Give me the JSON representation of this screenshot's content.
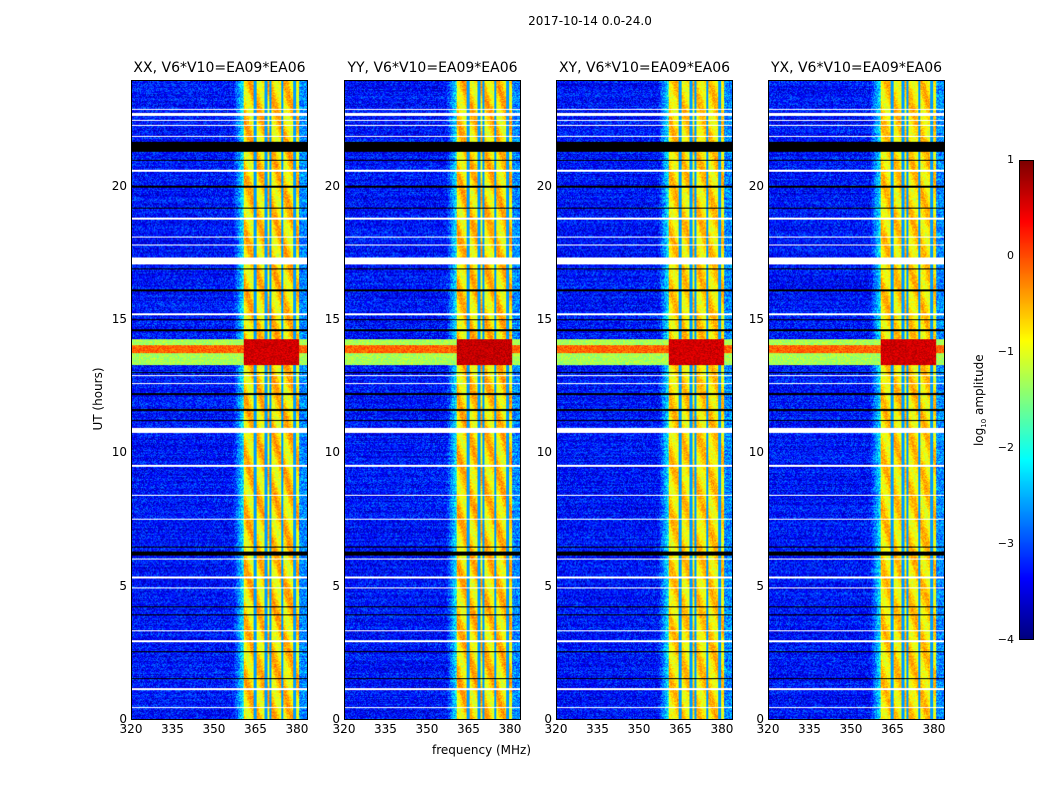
{
  "chart_data": {
    "type": "heatmap",
    "title": "2017-10-14 0.0-24.0",
    "xlabel": "frequency (MHz)",
    "ylabel": "UT (hours)",
    "xlim": [
      320,
      384
    ],
    "ylim": [
      0,
      24
    ],
    "xticks": [
      "320",
      "335",
      "350",
      "365",
      "380"
    ],
    "yticks": [
      "0",
      "5",
      "10",
      "15",
      "20"
    ],
    "panels": [
      {
        "title": "XX, V6*V10=EA09*EA06",
        "band_strength": 1.0,
        "event_strength": 1.0
      },
      {
        "title": "YY, V6*V10=EA09*EA06",
        "band_strength": 1.0,
        "event_strength": 1.1
      },
      {
        "title": "XY, V6*V10=EA09*EA06",
        "band_strength": 0.8,
        "event_strength": 1.0
      },
      {
        "title": "YX, V6*V10=EA09*EA06",
        "band_strength": 0.8,
        "event_strength": 1.0
      }
    ],
    "colorbar": {
      "label": "log10 amplitude",
      "label_main": "log",
      "label_sub": "10",
      "label_rest": " amplitude",
      "range": [
        -4,
        1
      ],
      "ticks": [
        "1",
        "0",
        "−1",
        "−2",
        "−3",
        "−4"
      ],
      "colormap": "jet"
    },
    "features": {
      "background_log_amp": -3.3,
      "rfi_band_mhz": [
        361,
        381
      ],
      "rfi_log_amp": -0.9,
      "band_gap_lines_mhz": [
        365,
        369,
        370.5,
        375,
        379.5
      ],
      "event_hours": [
        13.3,
        14.3
      ],
      "event_log_amp": 0.6,
      "flagged_white_hours": [
        [
          22.3,
          22.35
        ],
        [
          22.5,
          22.55
        ],
        [
          22.7,
          22.8
        ],
        [
          22.9,
          22.95
        ],
        [
          21.9,
          21.95
        ],
        [
          17.1,
          17.35
        ],
        [
          10.75,
          10.95
        ],
        [
          6.0,
          6.05
        ],
        [
          12.9,
          12.95
        ],
        [
          12.6,
          12.65
        ],
        [
          3.3,
          3.35
        ],
        [
          2.9,
          2.95
        ],
        [
          1.1,
          1.15
        ],
        [
          0.4,
          0.45
        ],
        [
          18.1,
          18.15
        ],
        [
          17.8,
          17.85
        ],
        [
          8.4,
          8.45
        ],
        [
          9.5,
          9.55
        ],
        [
          4.9,
          4.95
        ],
        [
          20.6,
          20.65
        ],
        [
          18.8,
          18.85
        ],
        [
          15.2,
          15.25
        ],
        [
          7.5,
          7.55
        ],
        [
          5.3,
          5.35
        ]
      ],
      "black_hours": [
        [
          21.35,
          21.7
        ],
        [
          6.15,
          6.3
        ],
        [
          11.2,
          11.25
        ],
        [
          11.6,
          11.65
        ],
        [
          13.0,
          13.05
        ],
        [
          12.2,
          12.25
        ],
        [
          15.0,
          15.05
        ],
        [
          14.6,
          14.65
        ],
        [
          16.1,
          16.15
        ],
        [
          16.9,
          16.95
        ],
        [
          19.2,
          19.25
        ],
        [
          20.0,
          20.05
        ],
        [
          21.0,
          21.05
        ],
        [
          4.2,
          4.25
        ],
        [
          2.5,
          2.55
        ],
        [
          1.5,
          1.55
        ],
        [
          3.9,
          3.95
        ],
        [
          6.45,
          6.5
        ]
      ]
    }
  }
}
